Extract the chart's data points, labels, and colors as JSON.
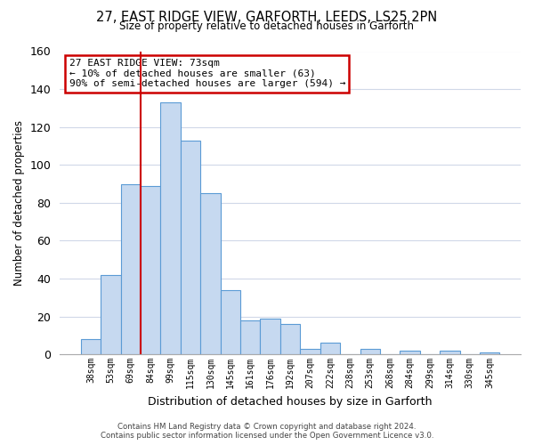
{
  "title": "27, EAST RIDGE VIEW, GARFORTH, LEEDS, LS25 2PN",
  "subtitle": "Size of property relative to detached houses in Garforth",
  "xlabel": "Distribution of detached houses by size in Garforth",
  "ylabel": "Number of detached properties",
  "footer_line1": "Contains HM Land Registry data © Crown copyright and database right 2024.",
  "footer_line2": "Contains public sector information licensed under the Open Government Licence v3.0.",
  "bin_labels": [
    "38sqm",
    "53sqm",
    "69sqm",
    "84sqm",
    "99sqm",
    "115sqm",
    "130sqm",
    "145sqm",
    "161sqm",
    "176sqm",
    "192sqm",
    "207sqm",
    "222sqm",
    "238sqm",
    "253sqm",
    "268sqm",
    "284sqm",
    "299sqm",
    "314sqm",
    "330sqm",
    "345sqm"
  ],
  "bar_heights": [
    8,
    42,
    90,
    89,
    133,
    113,
    85,
    34,
    18,
    19,
    16,
    3,
    6,
    0,
    3,
    0,
    2,
    0,
    2,
    0,
    1
  ],
  "bar_color": "#c6d9f0",
  "bar_edge_color": "#5b9bd5",
  "ylim": [
    0,
    160
  ],
  "yticks": [
    0,
    20,
    40,
    60,
    80,
    100,
    120,
    140,
    160
  ],
  "property_label": "27 EAST RIDGE VIEW: 73sqm",
  "annotation_line1": "← 10% of detached houses are smaller (63)",
  "annotation_line2": "90% of semi-detached houses are larger (594) →",
  "vline_color": "#cc0000",
  "background_color": "#ffffff",
  "grid_color": "#d0d8e8"
}
